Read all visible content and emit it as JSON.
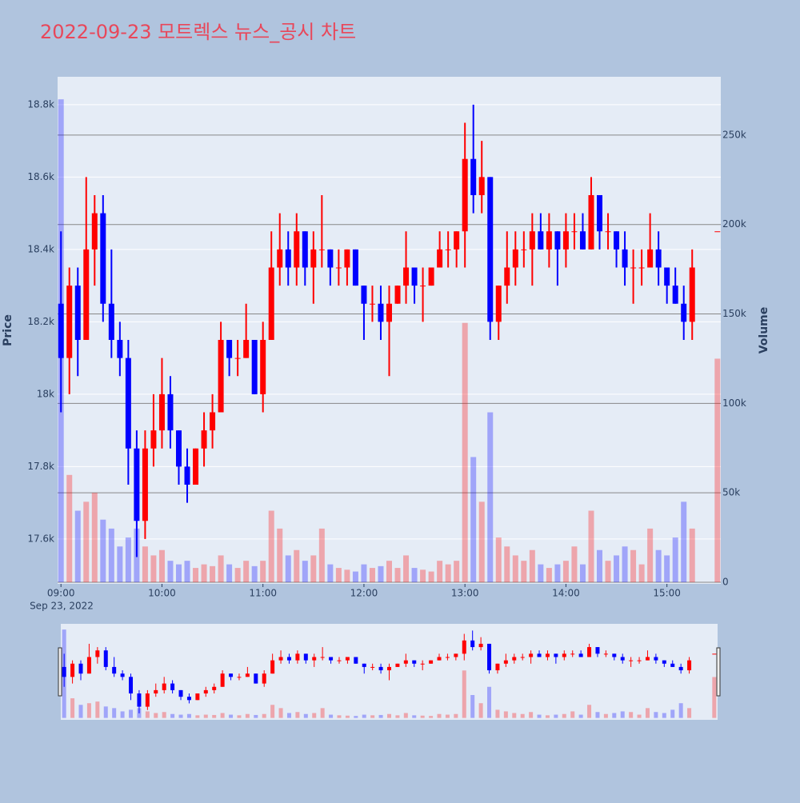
{
  "chart_data": {
    "type": "candlestick",
    "title": "2022-09-23 모트렉스 뉴스_공시 차트",
    "x_date_label": "Sep 23, 2022",
    "ylabel": "Price",
    "y2label": "Volume",
    "increasing_color": "#ff0000",
    "decreasing_color": "#0000ff",
    "rangeslider": true,
    "x": [
      "2022-09-23 09:00",
      "2022-09-23 09:05",
      "2022-09-23 09:10",
      "2022-09-23 09:15",
      "2022-09-23 09:20",
      "2022-09-23 09:25",
      "2022-09-23 09:30",
      "2022-09-23 09:35",
      "2022-09-23 09:40",
      "2022-09-23 09:45",
      "2022-09-23 09:50",
      "2022-09-23 09:55",
      "2022-09-23 10:00",
      "2022-09-23 10:05",
      "2022-09-23 10:10",
      "2022-09-23 10:15",
      "2022-09-23 10:20",
      "2022-09-23 10:25",
      "2022-09-23 10:30",
      "2022-09-23 10:35",
      "2022-09-23 10:40",
      "2022-09-23 10:45",
      "2022-09-23 10:50",
      "2022-09-23 10:55",
      "2022-09-23 11:00",
      "2022-09-23 11:05",
      "2022-09-23 11:10",
      "2022-09-23 11:15",
      "2022-09-23 11:20",
      "2022-09-23 11:25",
      "2022-09-23 11:30",
      "2022-09-23 11:35",
      "2022-09-23 11:40",
      "2022-09-23 11:45",
      "2022-09-23 11:50",
      "2022-09-23 11:55",
      "2022-09-23 12:00",
      "2022-09-23 12:05",
      "2022-09-23 12:10",
      "2022-09-23 12:15",
      "2022-09-23 12:20",
      "2022-09-23 12:25",
      "2022-09-23 12:30",
      "2022-09-23 12:35",
      "2022-09-23 12:40",
      "2022-09-23 12:45",
      "2022-09-23 12:50",
      "2022-09-23 12:55",
      "2022-09-23 13:00",
      "2022-09-23 13:05",
      "2022-09-23 13:10",
      "2022-09-23 13:15",
      "2022-09-23 13:20",
      "2022-09-23 13:25",
      "2022-09-23 13:30",
      "2022-09-23 13:35",
      "2022-09-23 13:40",
      "2022-09-23 13:45",
      "2022-09-23 13:50",
      "2022-09-23 13:55",
      "2022-09-23 14:00",
      "2022-09-23 14:05",
      "2022-09-23 14:10",
      "2022-09-23 14:15",
      "2022-09-23 14:20",
      "2022-09-23 14:25",
      "2022-09-23 14:30",
      "2022-09-23 14:35",
      "2022-09-23 14:40",
      "2022-09-23 14:45",
      "2022-09-23 14:50",
      "2022-09-23 14:55",
      "2022-09-23 15:00",
      "2022-09-23 15:05",
      "2022-09-23 15:10",
      "2022-09-23 15:15",
      "2022-09-23 15:30"
    ],
    "open": [
      18250,
      18100,
      18300,
      18150,
      18400,
      18500,
      18250,
      18150,
      18100,
      17850,
      17650,
      17850,
      17900,
      18000,
      17900,
      17800,
      17750,
      17850,
      17900,
      17950,
      18150,
      18100,
      18100,
      18150,
      18000,
      18150,
      18350,
      18400,
      18350,
      18450,
      18350,
      18400,
      18400,
      18350,
      18350,
      18400,
      18300,
      18250,
      18250,
      18200,
      18250,
      18300,
      18350,
      18300,
      18300,
      18350,
      18400,
      18400,
      18450,
      18650,
      18550,
      18600,
      18200,
      18300,
      18350,
      18400,
      18400,
      18450,
      18400,
      18450,
      18400,
      18450,
      18450,
      18400,
      18550,
      18450,
      18450,
      18400,
      18350,
      18350,
      18350,
      18400,
      18350,
      18300,
      18250,
      18200,
      18450
    ],
    "high": [
      18450,
      18350,
      18350,
      18600,
      18550,
      18550,
      18400,
      18200,
      18150,
      17900,
      17900,
      18000,
      18100,
      18050,
      17900,
      17850,
      17850,
      17950,
      18000,
      18200,
      18150,
      18150,
      18250,
      18150,
      18200,
      18450,
      18500,
      18450,
      18500,
      18450,
      18450,
      18550,
      18400,
      18400,
      18400,
      18400,
      18300,
      18300,
      18300,
      18300,
      18300,
      18450,
      18350,
      18350,
      18350,
      18450,
      18450,
      18450,
      18750,
      18800,
      18700,
      18600,
      18300,
      18450,
      18450,
      18450,
      18500,
      18500,
      18500,
      18450,
      18500,
      18500,
      18500,
      18600,
      18550,
      18500,
      18450,
      18450,
      18400,
      18400,
      18500,
      18450,
      18350,
      18350,
      18300,
      18400,
      18450
    ],
    "low": [
      17950,
      18000,
      18050,
      18150,
      18300,
      18200,
      18100,
      18050,
      17750,
      17550,
      17600,
      17800,
      17850,
      17850,
      17750,
      17700,
      17750,
      17800,
      17850,
      17950,
      18050,
      18050,
      18100,
      18000,
      17950,
      18150,
      18300,
      18300,
      18300,
      18300,
      18250,
      18350,
      18300,
      18300,
      18300,
      18300,
      18150,
      18200,
      18150,
      18050,
      18250,
      18250,
      18250,
      18200,
      18300,
      18350,
      18350,
      18350,
      18350,
      18500,
      18500,
      18150,
      18150,
      18250,
      18300,
      18350,
      18300,
      18400,
      18350,
      18300,
      18350,
      18400,
      18400,
      18400,
      18400,
      18400,
      18350,
      18300,
      18250,
      18300,
      18350,
      18300,
      18250,
      18250,
      18150,
      18150,
      18450
    ],
    "close": [
      18100,
      18300,
      18150,
      18400,
      18500,
      18250,
      18150,
      18100,
      17850,
      17650,
      17850,
      17900,
      18000,
      17900,
      17800,
      17750,
      17850,
      17900,
      17950,
      18150,
      18100,
      18100,
      18150,
      18000,
      18150,
      18350,
      18400,
      18350,
      18450,
      18350,
      18400,
      18400,
      18350,
      18350,
      18400,
      18300,
      18250,
      18250,
      18200,
      18250,
      18300,
      18350,
      18300,
      18300,
      18350,
      18400,
      18400,
      18450,
      18650,
      18550,
      18600,
      18200,
      18300,
      18350,
      18400,
      18400,
      18450,
      18400,
      18450,
      18400,
      18450,
      18450,
      18400,
      18550,
      18450,
      18450,
      18400,
      18350,
      18350,
      18350,
      18400,
      18350,
      18300,
      18250,
      18200,
      18350,
      18450
    ],
    "volume": [
      270000,
      60000,
      40000,
      45000,
      50000,
      35000,
      30000,
      20000,
      25000,
      30000,
      20000,
      15000,
      18000,
      12000,
      10000,
      12000,
      8000,
      10000,
      9000,
      15000,
      10000,
      8000,
      12000,
      9000,
      12000,
      40000,
      30000,
      15000,
      18000,
      12000,
      15000,
      30000,
      10000,
      8000,
      7000,
      6000,
      10000,
      8000,
      9000,
      12000,
      8000,
      15000,
      8000,
      7000,
      6000,
      12000,
      10000,
      12000,
      145000,
      70000,
      45000,
      95000,
      25000,
      20000,
      15000,
      12000,
      18000,
      10000,
      8000,
      10000,
      12000,
      20000,
      10000,
      40000,
      18000,
      12000,
      15000,
      20000,
      18000,
      10000,
      30000,
      18000,
      15000,
      25000,
      45000,
      30000,
      125000
    ],
    "xlim": [
      "2022-09-23 08:58",
      "2022-09-23 15:32"
    ],
    "xticks": [
      {
        "value": "2022-09-23 09:00",
        "label": "09:00"
      },
      {
        "value": "2022-09-23 10:00",
        "label": "10:00"
      },
      {
        "value": "2022-09-23 11:00",
        "label": "11:00"
      },
      {
        "value": "2022-09-23 12:00",
        "label": "12:00"
      },
      {
        "value": "2022-09-23 13:00",
        "label": "13:00"
      },
      {
        "value": "2022-09-23 14:00",
        "label": "14:00"
      },
      {
        "value": "2022-09-23 15:00",
        "label": "15:00"
      }
    ],
    "ylim": [
      17476,
      18877
    ],
    "yticks": [
      {
        "value": 17600,
        "label": "17.6k"
      },
      {
        "value": 17800,
        "label": "17.8k"
      },
      {
        "value": 18000,
        "label": "18k"
      },
      {
        "value": 18200,
        "label": "18.2k"
      },
      {
        "value": 18400,
        "label": "18.4k"
      },
      {
        "value": 18600,
        "label": "18.6k"
      },
      {
        "value": 18800,
        "label": "18.8k"
      }
    ],
    "y2lim": [
      -900,
      282600
    ],
    "y2ticks": [
      0,
      {
        "value": 50000,
        "label": "50k"
      },
      {
        "value": 100000,
        "label": "100k"
      },
      {
        "value": 150000,
        "label": "150k"
      },
      {
        "value": 200000,
        "label": "200k"
      },
      {
        "value": 250000,
        "label": "250k"
      }
    ]
  }
}
